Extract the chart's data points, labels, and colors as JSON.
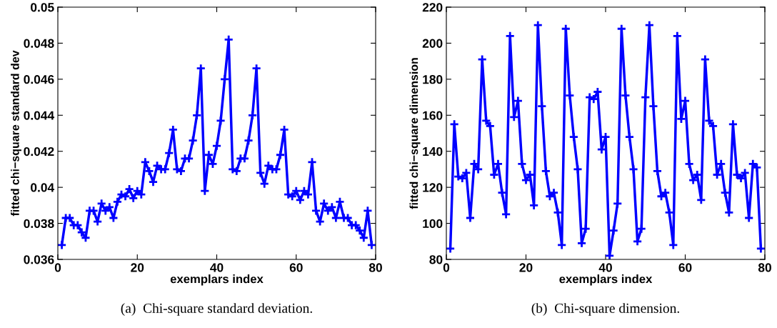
{
  "chart_data": [
    {
      "type": "line",
      "xlabel": "exemplars index",
      "ylabel": "fitted chi−square standard dev",
      "annotations": [
        "(a)  Chi-square standard deviation."
      ],
      "marker": "cross",
      "line_style": "solid",
      "grid": false,
      "legend": false,
      "x": [
        1,
        2,
        3,
        4,
        5,
        6,
        7,
        8,
        9,
        10,
        11,
        12,
        13,
        14,
        15,
        16,
        17,
        18,
        19,
        20,
        21,
        22,
        23,
        24,
        25,
        26,
        27,
        28,
        29,
        30,
        31,
        32,
        33,
        34,
        35,
        36,
        37,
        38,
        39,
        40,
        41,
        42,
        43,
        44,
        45,
        46,
        47,
        48,
        49,
        50,
        51,
        52,
        53,
        54,
        55,
        56,
        57,
        58,
        59,
        60,
        61,
        62,
        63,
        64,
        65,
        66,
        67,
        68,
        69,
        70,
        71,
        72,
        73,
        74,
        75,
        76,
        77,
        78,
        79
      ],
      "series": [
        {
          "color": "#0000ff",
          "values": [
            0.0368,
            0.0383,
            0.0383,
            0.0379,
            0.0379,
            0.0375,
            0.0372,
            0.0387,
            0.0387,
            0.0381,
            0.0391,
            0.0387,
            0.0389,
            0.0383,
            0.0392,
            0.0396,
            0.0395,
            0.0399,
            0.0394,
            0.0398,
            0.0396,
            0.0414,
            0.0409,
            0.0403,
            0.0412,
            0.041,
            0.041,
            0.0419,
            0.0432,
            0.041,
            0.0409,
            0.0416,
            0.0416,
            0.0426,
            0.044,
            0.0466,
            0.0398,
            0.0418,
            0.0413,
            0.0423,
            0.0437,
            0.046,
            0.0482,
            0.041,
            0.0409,
            0.0416,
            0.0416,
            0.0426,
            0.044,
            0.0466,
            0.0408,
            0.0402,
            0.0412,
            0.041,
            0.041,
            0.0418,
            0.0432,
            0.0396,
            0.0395,
            0.0398,
            0.0393,
            0.0398,
            0.0396,
            0.0414,
            0.0387,
            0.0381,
            0.0391,
            0.0387,
            0.0389,
            0.0383,
            0.0392,
            0.0383,
            0.0383,
            0.0379,
            0.0379,
            0.0376,
            0.0372,
            0.0387,
            0.0368
          ]
        }
      ],
      "xlim": [
        0,
        80
      ],
      "xticks": [
        0,
        20,
        40,
        60,
        80
      ],
      "ylim": [
        0.036,
        0.05
      ],
      "yticks": [
        0.036,
        0.038,
        {
          "value": 0.04,
          "label": "0.04"
        },
        0.042,
        0.044,
        0.046,
        0.048,
        {
          "value": 0.05,
          "label": "0.05"
        }
      ]
    },
    {
      "type": "line",
      "xlabel": "exemplars index",
      "ylabel": "fitted chi−square dimension",
      "annotations": [
        "(b)  Chi-square dimension."
      ],
      "marker": "cross",
      "line_style": "solid",
      "grid": false,
      "legend": false,
      "x": [
        1,
        2,
        3,
        4,
        5,
        6,
        7,
        8,
        9,
        10,
        11,
        12,
        13,
        14,
        15,
        16,
        17,
        18,
        19,
        20,
        21,
        22,
        23,
        24,
        25,
        26,
        27,
        28,
        29,
        30,
        31,
        32,
        33,
        34,
        35,
        36,
        37,
        38,
        39,
        40,
        41,
        42,
        43,
        44,
        45,
        46,
        47,
        48,
        49,
        50,
        51,
        52,
        53,
        54,
        55,
        56,
        57,
        58,
        59,
        60,
        61,
        62,
        63,
        64,
        65,
        66,
        67,
        68,
        69,
        70,
        71,
        72,
        73,
        74,
        75,
        76,
        77,
        78,
        79
      ],
      "series": [
        {
          "color": "#0000ff",
          "values": [
            86,
            155,
            126,
            125,
            128,
            103,
            133,
            130,
            191,
            157,
            154,
            127,
            133,
            117,
            105,
            204,
            159,
            168,
            133,
            124,
            127,
            110,
            210,
            165,
            129,
            115,
            117,
            106,
            88,
            208,
            171,
            148,
            130,
            89,
            97,
            170,
            169,
            173,
            141,
            148,
            82,
            96,
            111,
            208,
            171,
            148,
            130,
            90,
            97,
            170,
            210,
            165,
            129,
            115,
            117,
            106,
            88,
            204,
            158,
            168,
            133,
            124,
            127,
            113,
            191,
            157,
            154,
            127,
            133,
            117,
            106,
            155,
            127,
            125,
            128,
            103,
            133,
            131,
            86
          ]
        }
      ],
      "xlim": [
        0,
        80
      ],
      "xticks": [
        0,
        20,
        40,
        60,
        80
      ],
      "ylim": [
        80,
        220
      ],
      "yticks": [
        80,
        100,
        120,
        140,
        160,
        180,
        200,
        220
      ]
    }
  ]
}
